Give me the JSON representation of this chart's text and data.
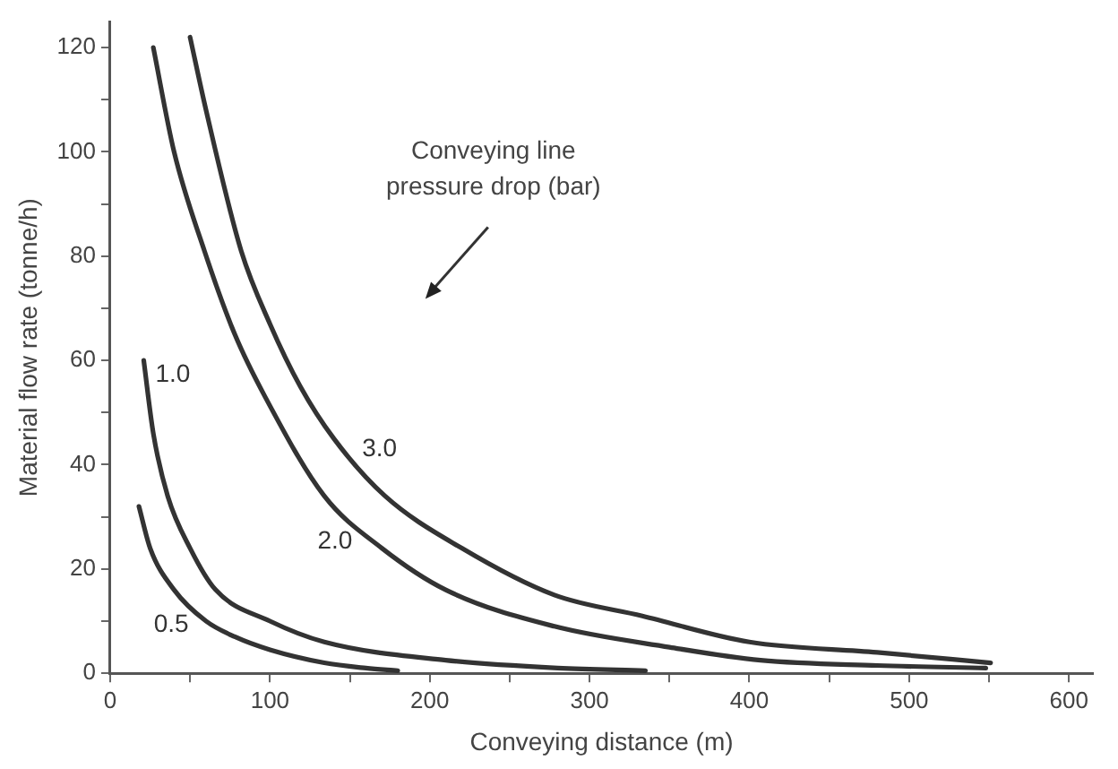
{
  "chart_data": {
    "type": "line",
    "xlabel": "Conveying distance (m)",
    "ylabel": "Material flow rate (tonne/h)",
    "annotations": [
      "Conveying line\npressure drop (bar)"
    ],
    "xlim": [
      0,
      615
    ],
    "ylim": [
      0,
      125
    ],
    "xticks": [
      0,
      {
        "value": 50,
        "label": null
      },
      100,
      {
        "value": 150,
        "label": null
      },
      200,
      {
        "value": 250,
        "label": null
      },
      300,
      {
        "value": 350,
        "label": null
      },
      400,
      {
        "value": 450,
        "label": null
      },
      500,
      {
        "value": 550,
        "label": null
      },
      600
    ],
    "yticks": [
      0,
      {
        "value": 10,
        "label": null
      },
      20,
      {
        "value": 30,
        "label": null
      },
      40,
      {
        "value": 50,
        "label": null
      },
      60,
      {
        "value": 70,
        "label": null
      },
      80,
      {
        "value": 90,
        "label": null
      },
      100,
      {
        "value": 110,
        "label": null
      },
      120
    ],
    "grid": false,
    "legend": false,
    "marker": "none",
    "line_style": "solid",
    "series": [
      {
        "name": "0.5",
        "color": "#333333",
        "x": [
          18,
          25,
          40,
          60,
          78,
          100,
          134,
          160,
          180
        ],
        "values": [
          32,
          24,
          16,
          10,
          7,
          4.5,
          2,
          1,
          0.5
        ]
      },
      {
        "name": "1.0",
        "color": "#333333",
        "x": [
          21,
          27,
          36,
          50,
          66,
          100,
          134,
          210,
          280,
          335
        ],
        "values": [
          60,
          46,
          34,
          24,
          16,
          10,
          6,
          2.5,
          1,
          0.5
        ]
      },
      {
        "name": "2.0",
        "color": "#333333",
        "x": [
          27,
          40,
          59,
          78,
          97,
          134,
          170,
          210,
          278,
          350,
          407,
          480,
          548
        ],
        "values": [
          120,
          100,
          81,
          65,
          53,
          34,
          24,
          16,
          9,
          5,
          2.5,
          1.5,
          1
        ]
      },
      {
        "name": "3.0",
        "color": "#333333",
        "x": [
          50,
          60,
          82,
          100,
          119,
          140,
          172,
          220,
          278,
          333,
          400,
          480,
          551
        ],
        "values": [
          122,
          108,
          81,
          67,
          55,
          45,
          34,
          24,
          15,
          11,
          6,
          4,
          2
        ]
      }
    ]
  }
}
